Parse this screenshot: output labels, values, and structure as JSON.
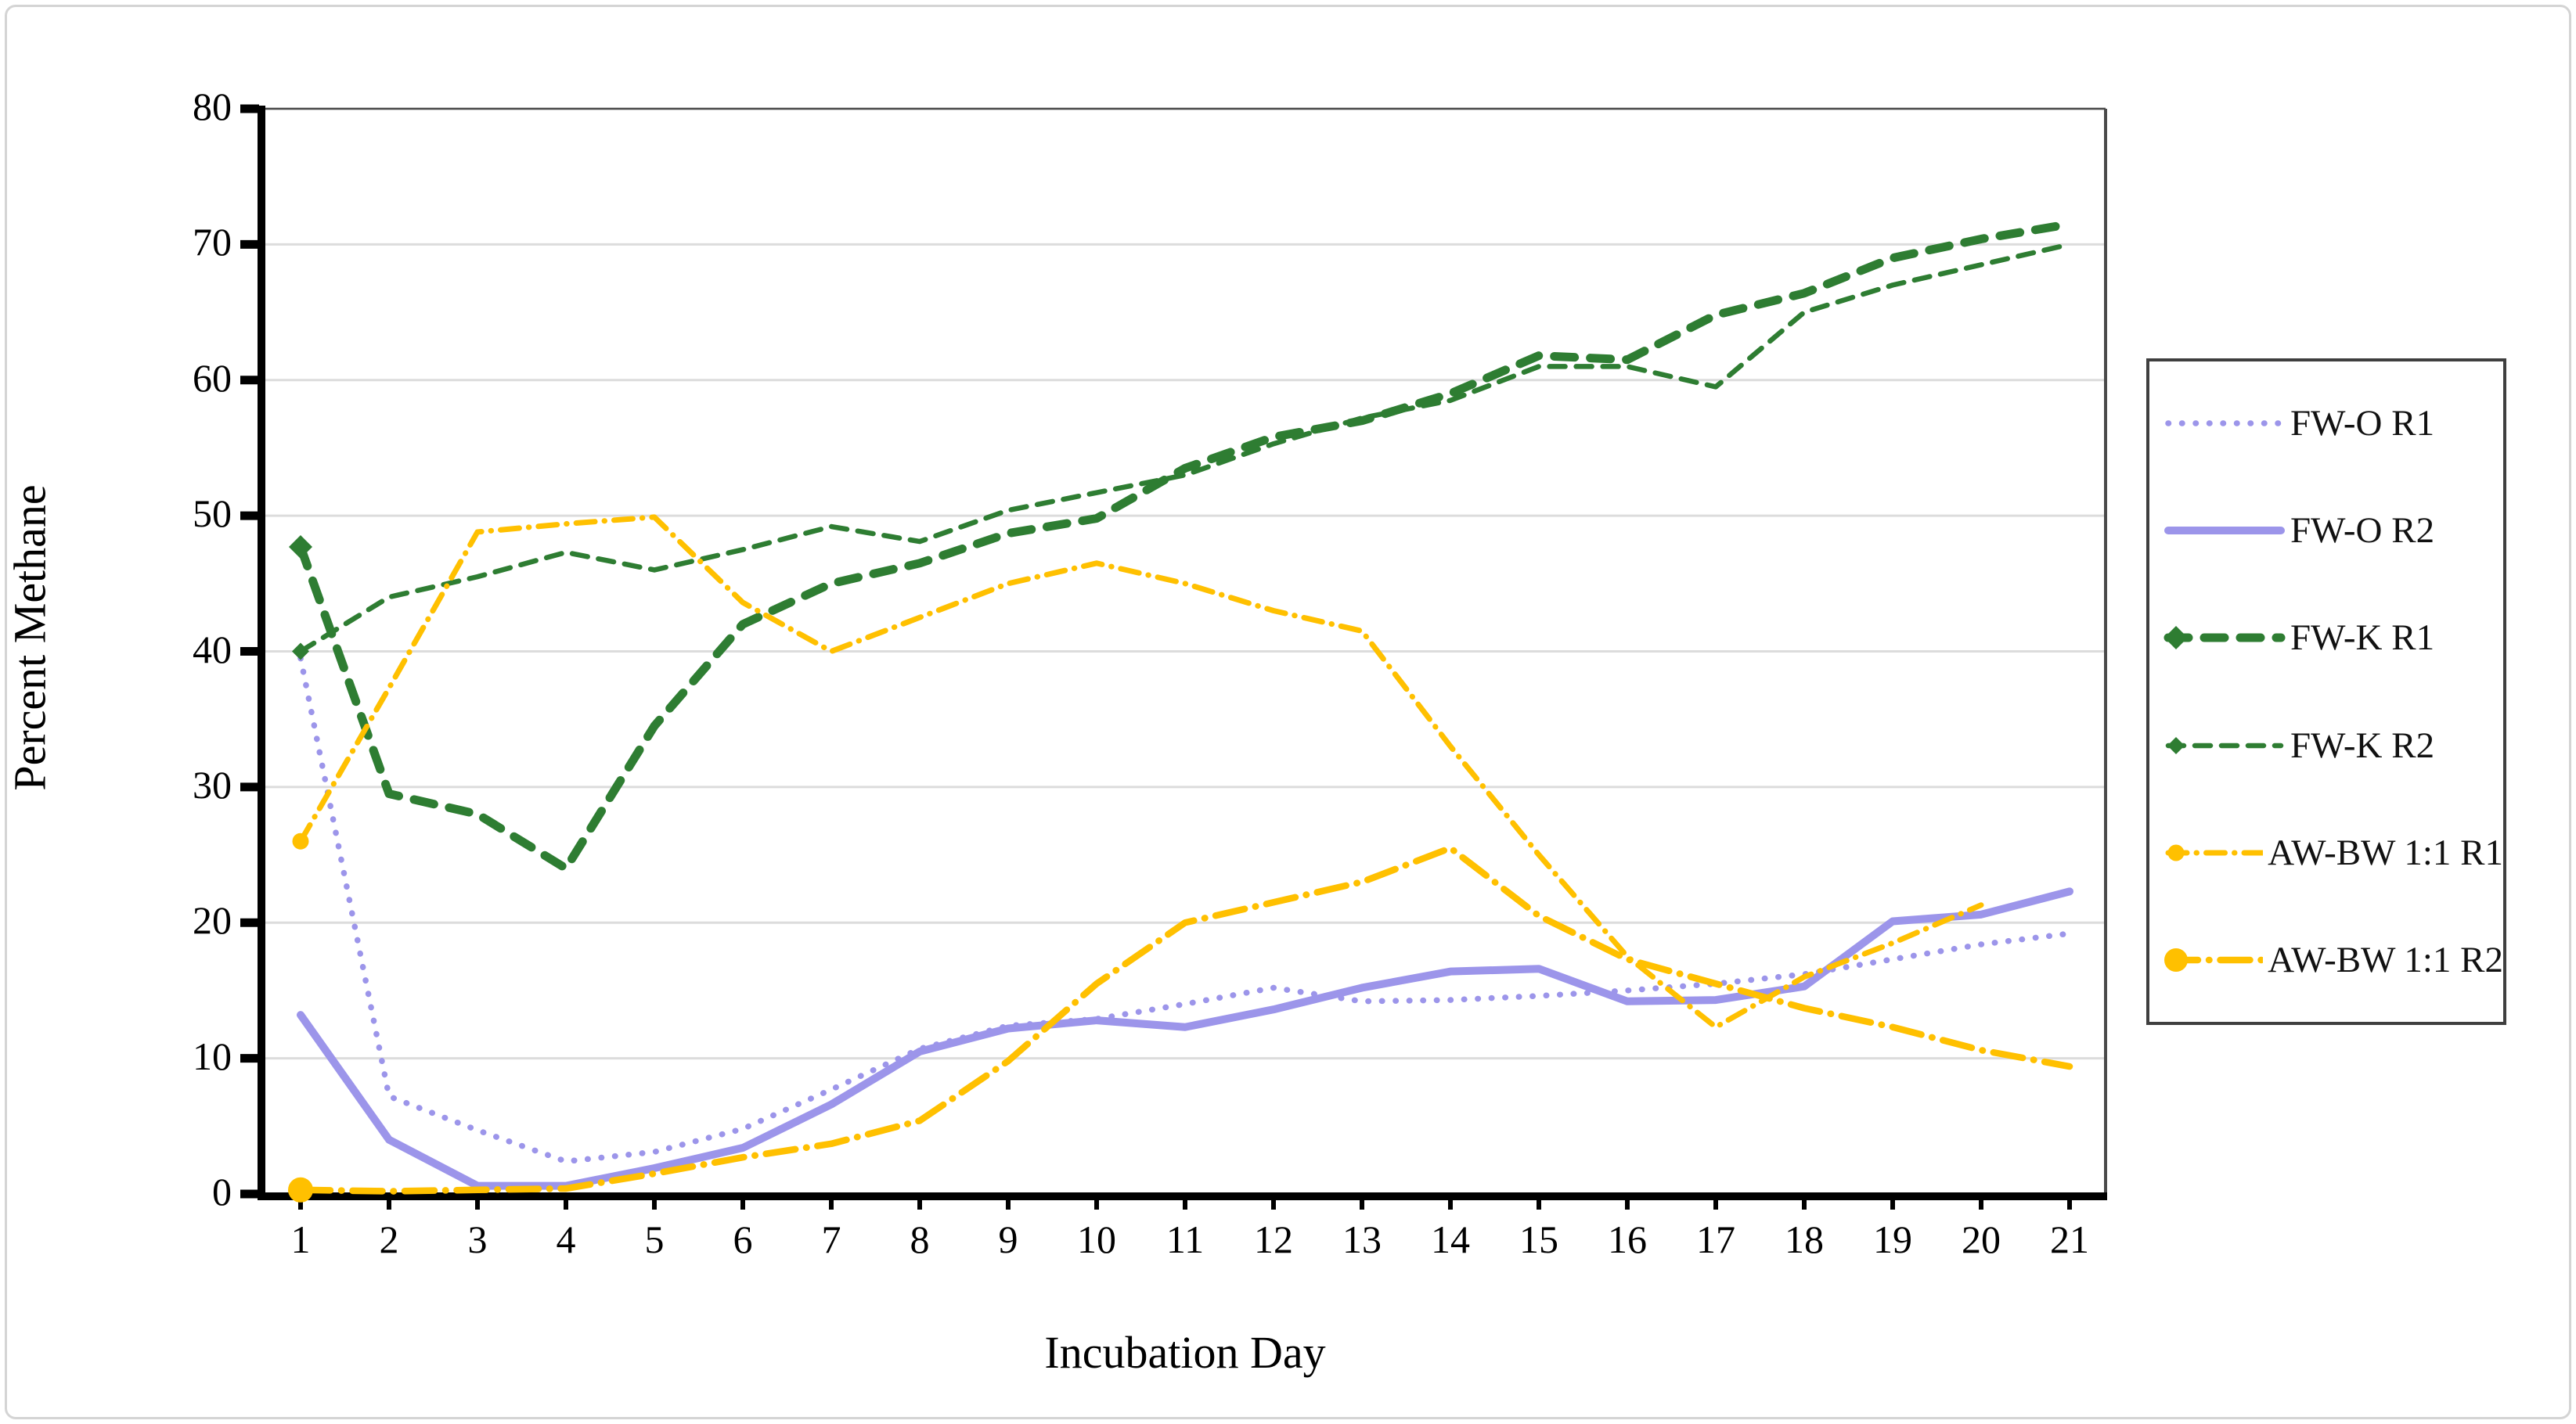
{
  "figure": {
    "background": "#ffffff",
    "outer_border": "#d4d4d4",
    "gridline_color": "#dcdcdc",
    "axis_color": "#000000",
    "plot_border_color": "#4a4a4a"
  },
  "chart_data": {
    "type": "line",
    "title": "",
    "xlabel": "Incubation Day",
    "ylabel": "Percent Methane",
    "x": [
      1,
      2,
      3,
      4,
      5,
      6,
      7,
      8,
      9,
      10,
      11,
      12,
      13,
      14,
      15,
      16,
      17,
      18,
      19,
      20,
      21
    ],
    "ylim": [
      0,
      80
    ],
    "yticks": [
      0,
      10,
      20,
      30,
      40,
      50,
      60,
      70,
      80
    ],
    "grid": "horizontal",
    "legend_position": "right",
    "series": [
      {
        "name": "FW-O R1",
        "color": "#9c95ea",
        "style": "dotted",
        "width": 7.5,
        "marker": "none",
        "values": [
          39.5,
          7.2,
          4.7,
          2.4,
          3.1,
          4.8,
          7.7,
          10.7,
          12.4,
          12.9,
          14.0,
          15.2,
          14.2,
          14.3,
          14.6,
          15.0,
          15.5,
          16.2,
          17.3,
          18.4,
          19.2
        ]
      },
      {
        "name": "FW-O R2",
        "color": "#9c95ea",
        "style": "solid",
        "width": 10,
        "marker": "none",
        "values": [
          13.2,
          4.0,
          0.6,
          0.6,
          1.9,
          3.4,
          6.6,
          10.5,
          12.2,
          12.8,
          12.3,
          13.6,
          15.2,
          16.4,
          16.6,
          14.2,
          14.3,
          15.3,
          20.1,
          20.6,
          22.3
        ]
      },
      {
        "name": "FW-K R1",
        "color": "#2e7d32",
        "style": "dash-thick",
        "width": 11,
        "marker": "diamond-big",
        "values": [
          47.7,
          29.5,
          28.0,
          24.0,
          34.5,
          42.0,
          45.0,
          46.5,
          48.7,
          49.8,
          53.5,
          55.8,
          57.0,
          59.0,
          61.8,
          61.5,
          64.8,
          66.4,
          69.0,
          70.4,
          71.5
        ]
      },
      {
        "name": "FW-K R2",
        "color": "#2e7d32",
        "style": "dash",
        "width": 6.5,
        "marker": "diamond-small",
        "values": [
          40.0,
          44.0,
          45.5,
          47.3,
          46.0,
          47.5,
          49.2,
          48.1,
          50.4,
          51.7,
          53.0,
          55.3,
          57.2,
          58.5,
          61.0,
          61.0,
          59.5,
          65.0,
          67.0,
          68.5,
          70.0
        ]
      },
      {
        "name": "AW-BW 1:1 R1",
        "color": "#ffc000",
        "style": "dashdot",
        "width": 7,
        "marker": "circle-small",
        "values": [
          26.0,
          37.3,
          48.8,
          49.4,
          49.9,
          43.6,
          40.0,
          42.5,
          45.0,
          46.5,
          45.0,
          43.0,
          41.5,
          33.0,
          25.0,
          17.5,
          12.3,
          16.0,
          18.5,
          21.3,
          null
        ]
      },
      {
        "name": "AW-BW 1:1 R2",
        "color": "#ffc000",
        "style": "dashdot-long",
        "width": 8.5,
        "marker": "circle-big",
        "values": [
          0.3,
          0.2,
          0.3,
          0.4,
          1.5,
          2.7,
          3.7,
          5.4,
          9.8,
          15.5,
          20.0,
          21.5,
          23.0,
          25.5,
          20.5,
          17.3,
          15.5,
          13.7,
          12.3,
          10.6,
          9.4
        ]
      }
    ]
  }
}
